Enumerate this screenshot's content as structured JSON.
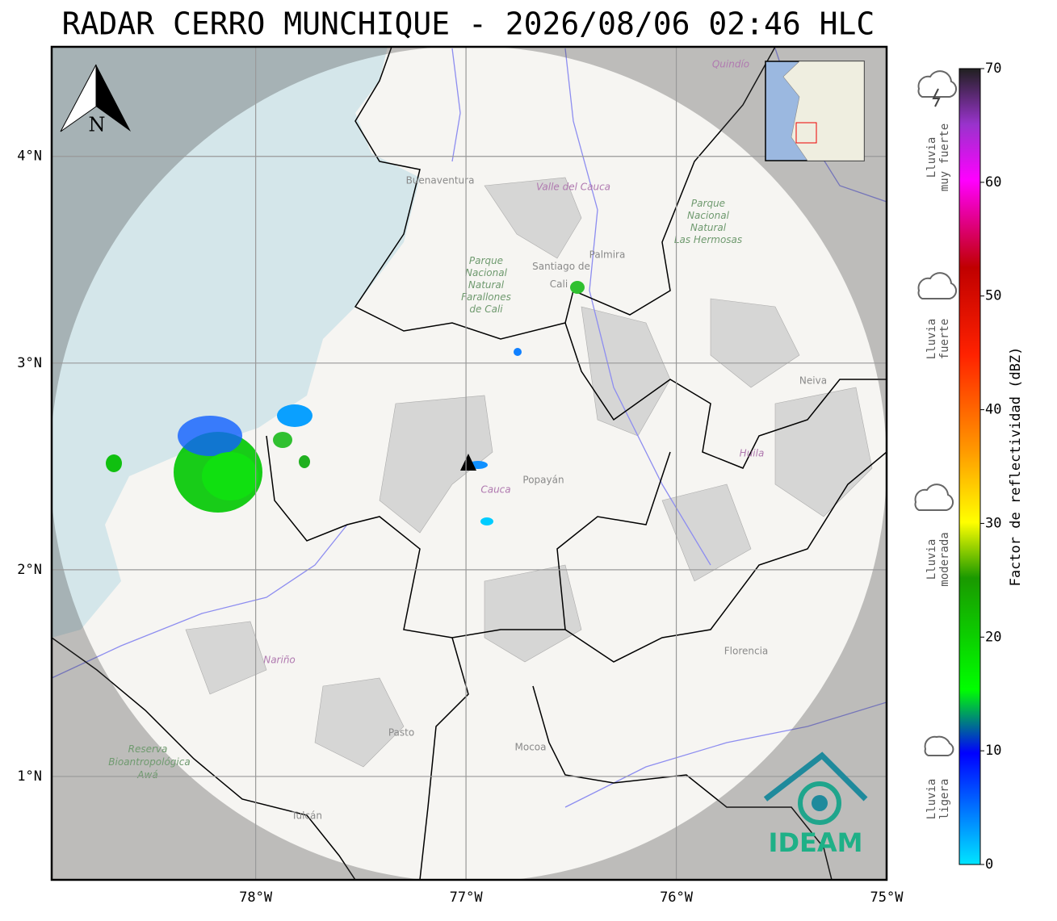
{
  "title": "RADAR CERRO MUNCHIQUE - 2026/08/06 02:46 HLC",
  "map": {
    "xlim": [
      -78.97,
      -75
    ],
    "ylim": [
      0.5,
      4.53
    ],
    "lon_ticks": [
      {
        "value": -78,
        "label": "78°W"
      },
      {
        "value": -77,
        "label": "77°W"
      },
      {
        "value": -76,
        "label": "76°W"
      },
      {
        "value": -75,
        "label": "75°W"
      }
    ],
    "lat_ticks": [
      {
        "value": 1,
        "label": "1°N"
      },
      {
        "value": 2,
        "label": "2°N"
      },
      {
        "value": 3,
        "label": "3°N"
      },
      {
        "value": 4,
        "label": "4°N"
      }
    ],
    "north": "N",
    "places": [
      {
        "lines": [
          "Buenaventura"
        ]
      },
      {
        "lines": [
          "Valle del Cauca"
        ]
      },
      {
        "lines": [
          "Parque",
          "Nacional",
          "Natural",
          "Farallones",
          "de Cali"
        ]
      },
      {
        "lines": [
          "Santiago de",
          "Cali"
        ]
      },
      {
        "lines": [
          "Palmira"
        ]
      },
      {
        "lines": [
          "Parque",
          "Nacional",
          "Natural",
          "Las Hermosas"
        ]
      },
      {
        "lines": [
          "Quindío"
        ]
      },
      {
        "lines": [
          "Neiva"
        ]
      },
      {
        "lines": [
          "Huila"
        ]
      },
      {
        "lines": [
          "Popayán"
        ]
      },
      {
        "lines": [
          "Cauca"
        ]
      },
      {
        "lines": [
          "Nariño"
        ]
      },
      {
        "lines": [
          "Florencia"
        ]
      },
      {
        "lines": [
          "Pasto"
        ]
      },
      {
        "lines": [
          "Mocoa"
        ]
      },
      {
        "lines": [
          "Tulcán"
        ]
      },
      {
        "lines": [
          "Reserva",
          "Bioantropológica",
          "Awá"
        ]
      }
    ],
    "logo": "IDEAM"
  },
  "colorbar": {
    "label": "Factor de reflectividad (dBZ)",
    "range": [
      0,
      70
    ],
    "ticks": [
      0,
      10,
      20,
      30,
      40,
      50,
      60,
      70
    ]
  },
  "rain_levels": [
    {
      "lines": [
        "Lluvia",
        "muy fuerte"
      ]
    },
    {
      "lines": [
        "Lluvia",
        "fuerte"
      ]
    },
    {
      "lines": [
        "Lluvia",
        "moderada"
      ]
    },
    {
      "lines": [
        "Lluvia",
        "ligera"
      ]
    }
  ]
}
